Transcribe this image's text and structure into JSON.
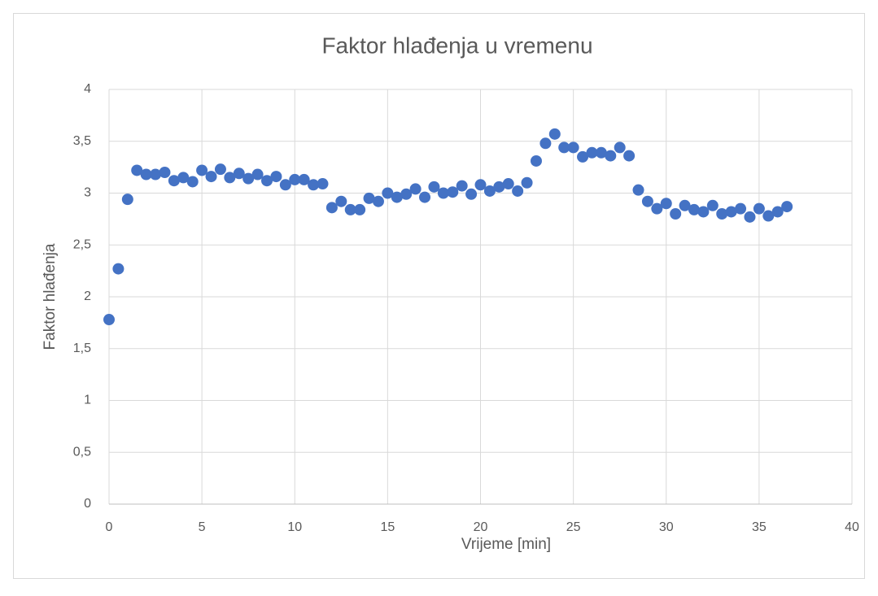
{
  "chart_data": {
    "type": "scatter",
    "title": "Faktor hlađenja u vremenu",
    "xlabel": "Vrijeme [min]",
    "ylabel": "Faktor hlađenja",
    "series": [
      {
        "name": "Faktor hlađenja",
        "color": "#4472c4",
        "x": [
          0,
          0.5,
          1,
          1.5,
          2,
          2.5,
          3,
          3.5,
          4,
          4.5,
          5,
          5.5,
          6,
          6.5,
          7,
          7.5,
          8,
          8.5,
          9,
          9.5,
          10,
          10.5,
          11,
          11.5,
          12,
          12.5,
          13,
          13.5,
          14,
          14.5,
          15,
          15.5,
          16,
          16.5,
          17,
          17.5,
          18,
          18.5,
          19,
          19.5,
          20,
          20.5,
          21,
          21.5,
          22,
          22.5,
          23,
          23.5,
          24,
          24.5,
          25,
          25.5,
          26,
          26.5,
          27,
          27.5,
          28,
          28.5,
          29,
          29.5,
          30,
          30.5,
          31,
          31.5,
          32,
          32.5,
          33,
          33.5,
          34,
          34.5,
          35,
          35.5,
          36,
          36.5
        ],
        "values": [
          1.78,
          2.27,
          2.94,
          3.22,
          3.18,
          3.18,
          3.2,
          3.12,
          3.15,
          3.11,
          3.22,
          3.16,
          3.23,
          3.15,
          3.19,
          3.14,
          3.18,
          3.12,
          3.16,
          3.08,
          3.13,
          3.13,
          3.08,
          3.09,
          2.86,
          2.92,
          2.84,
          2.84,
          2.95,
          2.92,
          3.0,
          2.96,
          2.99,
          3.04,
          2.96,
          3.06,
          3.0,
          3.01,
          3.07,
          2.99,
          3.08,
          3.02,
          3.06,
          3.09,
          3.02,
          3.1,
          3.31,
          3.48,
          3.57,
          3.44,
          3.44,
          3.35,
          3.39,
          3.39,
          3.36,
          3.44,
          3.36,
          3.03,
          2.92,
          2.85,
          2.9,
          2.8,
          2.88,
          2.84,
          2.82,
          2.88,
          2.8,
          2.82,
          2.85,
          2.77,
          2.85,
          2.78,
          2.82,
          2.87
        ]
      }
    ],
    "xlim": [
      0,
      40
    ],
    "xticks": [
      0,
      5,
      10,
      15,
      20,
      25,
      30,
      35,
      40
    ],
    "ylim": [
      0,
      4
    ],
    "yticks": [
      0,
      {
        "value": 0.5,
        "label": "0,5"
      },
      1,
      {
        "value": 1.5,
        "label": "1,5"
      },
      2,
      {
        "value": 2.5,
        "label": "2,5"
      },
      3,
      {
        "value": 3.5,
        "label": "3,5"
      },
      4
    ],
    "grid": true
  }
}
